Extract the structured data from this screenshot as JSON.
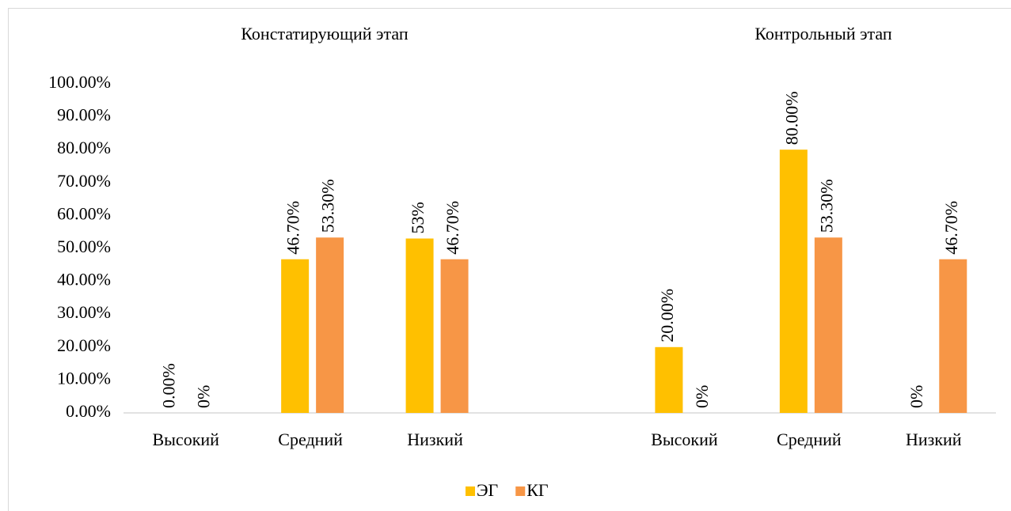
{
  "chart_data": {
    "type": "bar",
    "annotations": [
      "Констатирующий этап",
      "Контрольный этап"
    ],
    "categories": [
      "Высокий",
      "Средний",
      "Низкий",
      null,
      "Высокий",
      "Средний",
      "Низкий"
    ],
    "series": [
      {
        "name": "ЭГ",
        "color": "#ffc000",
        "values": [
          0,
          46.7,
          53,
          null,
          20,
          80,
          0
        ],
        "value_labels": [
          "0.00%",
          "46.70%",
          "53%",
          null,
          "20.00%",
          "80.00%",
          "0%"
        ]
      },
      {
        "name": "КГ",
        "color": "#f79646",
        "values": [
          0,
          53.3,
          46.7,
          null,
          0,
          53.3,
          46.7
        ],
        "value_labels": [
          "0%",
          "53.30%",
          "46.70%",
          null,
          "0%",
          "53.30%",
          "46.70%"
        ]
      }
    ],
    "ylim": [
      0,
      100
    ],
    "yticks": [
      {
        "value": 0,
        "label": "0.00%"
      },
      {
        "value": 10,
        "label": "10.00%"
      },
      {
        "value": 20,
        "label": "20.00%"
      },
      {
        "value": 30,
        "label": "30.00%"
      },
      {
        "value": 40,
        "label": "40.00%"
      },
      {
        "value": 50,
        "label": "50.00%"
      },
      {
        "value": 60,
        "label": "60.00%"
      },
      {
        "value": 70,
        "label": "70.00%"
      },
      {
        "value": 80,
        "label": "80.00%"
      },
      {
        "value": 90,
        "label": "90.00%"
      },
      {
        "value": 100,
        "label": "100.00%"
      }
    ],
    "grid": false,
    "legend": "bottom"
  }
}
